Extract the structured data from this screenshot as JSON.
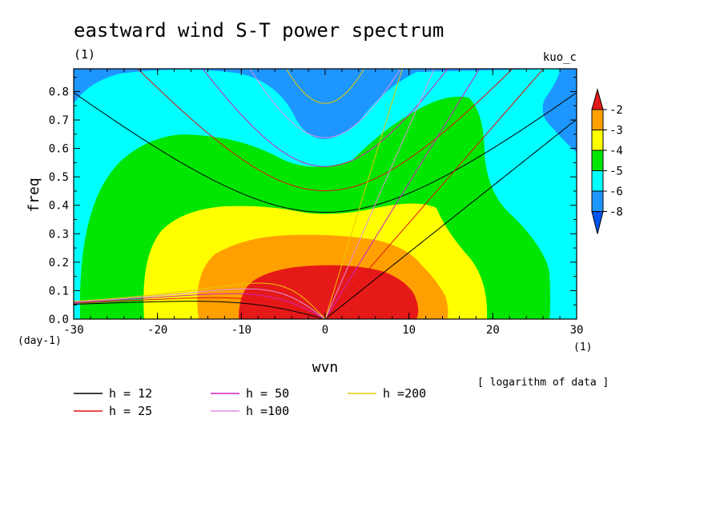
{
  "chart_data": {
    "type": "heatmap",
    "title": "eastward wind S-T power spectrum",
    "subtitle_left": "(1)",
    "subtitle_right": "kuo_c",
    "xlabel": "wvn",
    "ylabel": "freq",
    "x_unit": "(1)",
    "y_unit": "(day-1)",
    "note": "[ logarithm of data ]",
    "xlim": [
      -30,
      30
    ],
    "ylim": [
      0,
      0.88
    ],
    "xticks": [
      -30,
      -20,
      -10,
      0,
      10,
      20,
      30
    ],
    "yticks": [
      "0.0",
      "0.1",
      "0.2",
      "0.3",
      "0.4",
      "0.5",
      "0.6",
      "0.7",
      "0.8"
    ],
    "colorbar": {
      "labels": [
        "-2",
        "-3",
        "-4",
        "-5",
        "-6",
        "-8"
      ],
      "colors": [
        "#e61919",
        "#ffa000",
        "#ffff00",
        "#00e600",
        "#00ffff",
        "#1e96ff",
        "#0055ee"
      ]
    },
    "contour_levels": [
      {
        "level": "< -6",
        "color": "#1e96ff"
      },
      {
        "level": "-6",
        "color": "#00ffff"
      },
      {
        "level": "-5",
        "color": "#00e600"
      },
      {
        "level": "-4",
        "color": "#ffff00"
      },
      {
        "level": "-3",
        "color": "#ffa000"
      },
      {
        "level": "-2",
        "color": "#e61919"
      }
    ],
    "dispersion_curves": [
      {
        "name": "h = 12",
        "h": 12,
        "color": "#000000"
      },
      {
        "name": "h = 25",
        "h": 25,
        "color": "#e01010"
      },
      {
        "name": "h = 50",
        "h": 50,
        "color": "#d020c0"
      },
      {
        "name": "h =100",
        "h": 100,
        "color": "#e090e0"
      },
      {
        "name": "h =200",
        "h": 200,
        "color": "#e8c800"
      }
    ]
  }
}
